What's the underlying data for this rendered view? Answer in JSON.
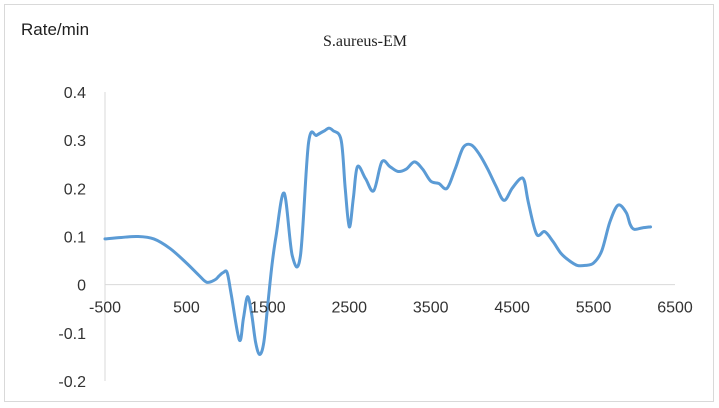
{
  "chart_data": {
    "type": "line",
    "title": "S.aureus-EM",
    "xlabel": "",
    "ylabel": "Rate/min",
    "xlim": [
      -500,
      6500
    ],
    "ylim": [
      -0.2,
      0.4
    ],
    "x_ticks": [
      -500,
      500,
      1500,
      2500,
      3500,
      4500,
      5500,
      6500
    ],
    "y_ticks": [
      -0.2,
      -0.1,
      0,
      0.1,
      0.2,
      0.3,
      0.4
    ],
    "y_tick_labels": [
      "-0.2",
      "-0.1",
      "0",
      "0.1",
      "0.2",
      "0.3",
      "0.4"
    ],
    "x_tick_labels": [
      "-500",
      "500",
      "1500",
      "2500",
      "3500",
      "4500",
      "5500",
      "6500"
    ],
    "grid": false,
    "legend": "none",
    "color": "#5b9bd5",
    "series": [
      {
        "x": [
          -500,
          -300,
          -100,
          100,
          300,
          500,
          650,
          750,
          850,
          900,
          950,
          1000,
          1050,
          1150,
          1200,
          1250,
          1300,
          1350,
          1400,
          1450,
          1500,
          1550,
          1600,
          1700,
          1800,
          1900,
          2000,
          2100,
          2200,
          2250,
          2300,
          2400,
          2450,
          2500,
          2550,
          2600,
          2700,
          2800,
          2900,
          3000,
          3100,
          3200,
          3300,
          3400,
          3500,
          3600,
          3700,
          3800,
          3900,
          4000,
          4100,
          4200,
          4300,
          4400,
          4500,
          4600,
          4650,
          4700,
          4800,
          4900,
          5000,
          5100,
          5200,
          5300,
          5400,
          5500,
          5600,
          5700,
          5800,
          5900,
          5950,
          6000,
          6100,
          6200
        ],
        "y": [
          0.095,
          0.098,
          0.1,
          0.095,
          0.075,
          0.045,
          0.02,
          0.005,
          0.01,
          0.018,
          0.025,
          0.025,
          -0.02,
          -0.115,
          -0.07,
          -0.025,
          -0.06,
          -0.12,
          -0.145,
          -0.12,
          -0.04,
          0.04,
          0.1,
          0.19,
          0.06,
          0.06,
          0.295,
          0.31,
          0.32,
          0.325,
          0.32,
          0.3,
          0.2,
          0.12,
          0.18,
          0.245,
          0.22,
          0.195,
          0.255,
          0.245,
          0.235,
          0.24,
          0.255,
          0.24,
          0.215,
          0.21,
          0.2,
          0.24,
          0.285,
          0.29,
          0.27,
          0.24,
          0.205,
          0.175,
          0.2,
          0.22,
          0.215,
          0.17,
          0.105,
          0.11,
          0.09,
          0.065,
          0.05,
          0.04,
          0.04,
          0.045,
          0.07,
          0.13,
          0.165,
          0.15,
          0.125,
          0.115,
          0.118,
          0.12
        ]
      }
    ]
  }
}
